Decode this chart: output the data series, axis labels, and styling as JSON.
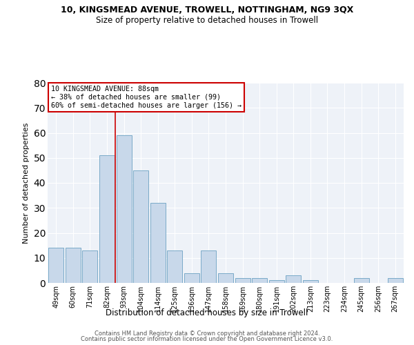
{
  "title1": "10, KINGSMEAD AVENUE, TROWELL, NOTTINGHAM, NG9 3QX",
  "title2": "Size of property relative to detached houses in Trowell",
  "xlabel": "Distribution of detached houses by size in Trowell",
  "ylabel": "Number of detached properties",
  "categories": [
    "49sqm",
    "60sqm",
    "71sqm",
    "82sqm",
    "93sqm",
    "104sqm",
    "114sqm",
    "125sqm",
    "136sqm",
    "147sqm",
    "158sqm",
    "169sqm",
    "180sqm",
    "191sqm",
    "202sqm",
    "213sqm",
    "223sqm",
    "234sqm",
    "245sqm",
    "256sqm",
    "267sqm"
  ],
  "values": [
    14,
    14,
    13,
    51,
    59,
    45,
    32,
    13,
    4,
    13,
    4,
    2,
    2,
    1,
    3,
    1,
    0,
    0,
    2,
    0,
    2
  ],
  "bar_color": "#c8d8ea",
  "bar_edge_color": "#7aaac8",
  "vline_position": 3.5,
  "vline_color": "#cc0000",
  "annotation_line1": "10 KINGSMEAD AVENUE: 88sqm",
  "annotation_line2": "← 38% of detached houses are smaller (99)",
  "annotation_line3": "60% of semi-detached houses are larger (156) →",
  "annotation_box_facecolor": "#ffffff",
  "annotation_box_edgecolor": "#cc0000",
  "ylim": [
    0,
    80
  ],
  "yticks": [
    0,
    10,
    20,
    30,
    40,
    50,
    60,
    70,
    80
  ],
  "plot_bg_color": "#eef2f8",
  "footer1": "Contains HM Land Registry data © Crown copyright and database right 2024.",
  "footer2": "Contains public sector information licensed under the Open Government Licence v3.0."
}
